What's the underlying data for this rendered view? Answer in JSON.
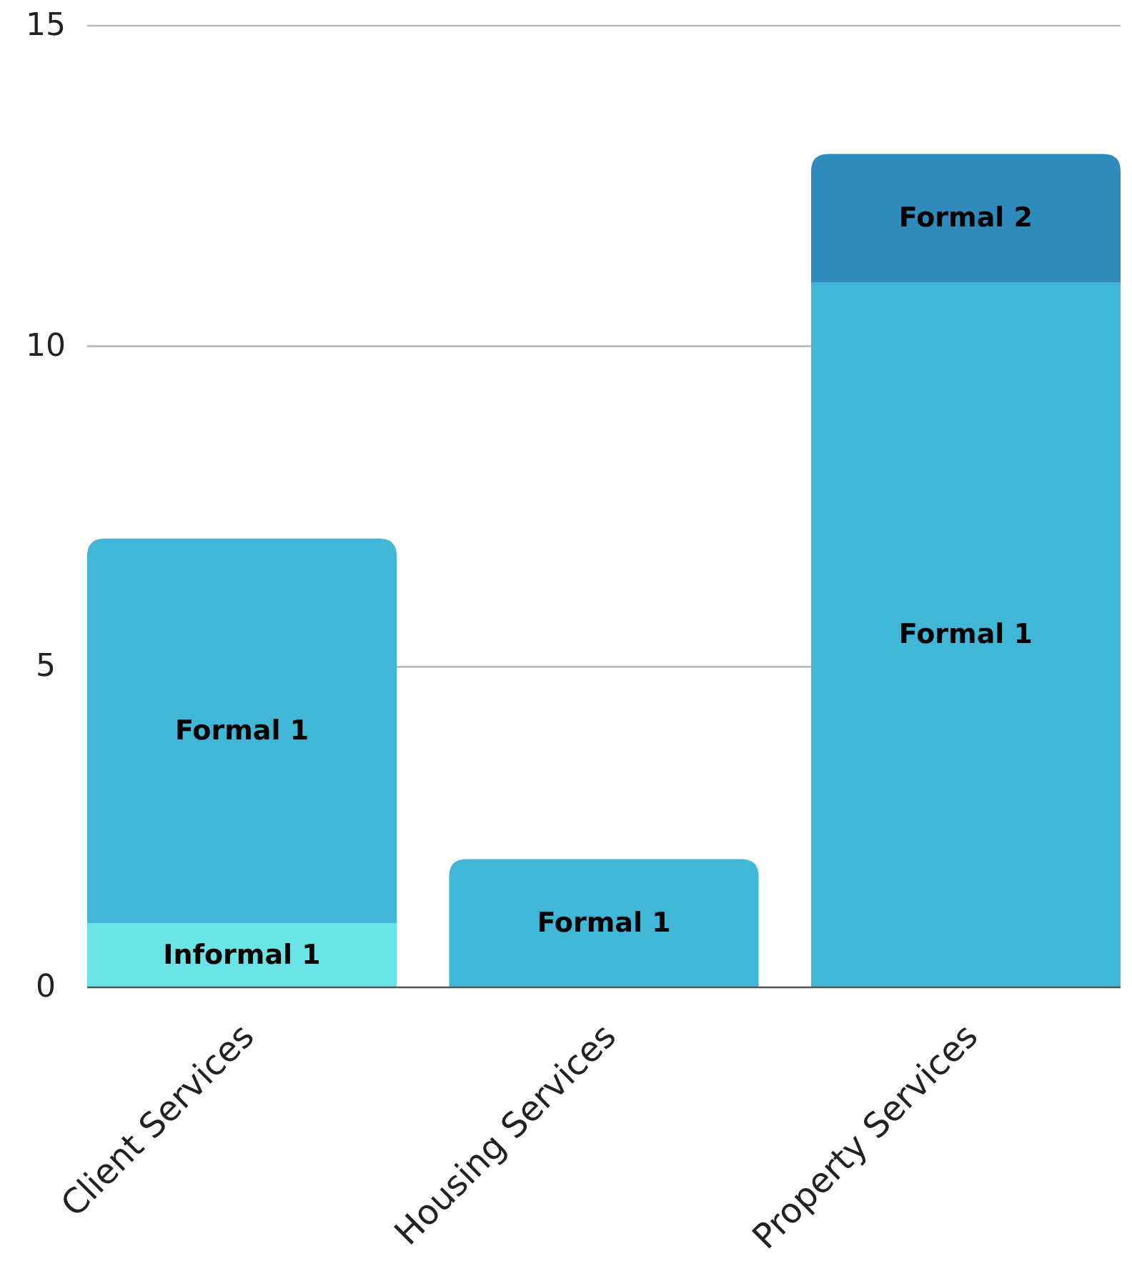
{
  "chart_data": {
    "type": "bar",
    "stacked": true,
    "categories": [
      "Client Services",
      "Housing Services",
      "Property Services"
    ],
    "series": [
      {
        "name": "Informal 1",
        "color": "#6ae3e6",
        "values": [
          1,
          null,
          null
        ]
      },
      {
        "name": "Formal 1",
        "color": "#42b6d6",
        "values": [
          6,
          2,
          11
        ]
      },
      {
        "name": "Formal 2",
        "color": "#2e8bbb",
        "values": [
          null,
          null,
          2
        ]
      }
    ],
    "ylim": [
      0,
      15
    ],
    "yticks": [
      0,
      5,
      10,
      15
    ],
    "grid": "y"
  }
}
